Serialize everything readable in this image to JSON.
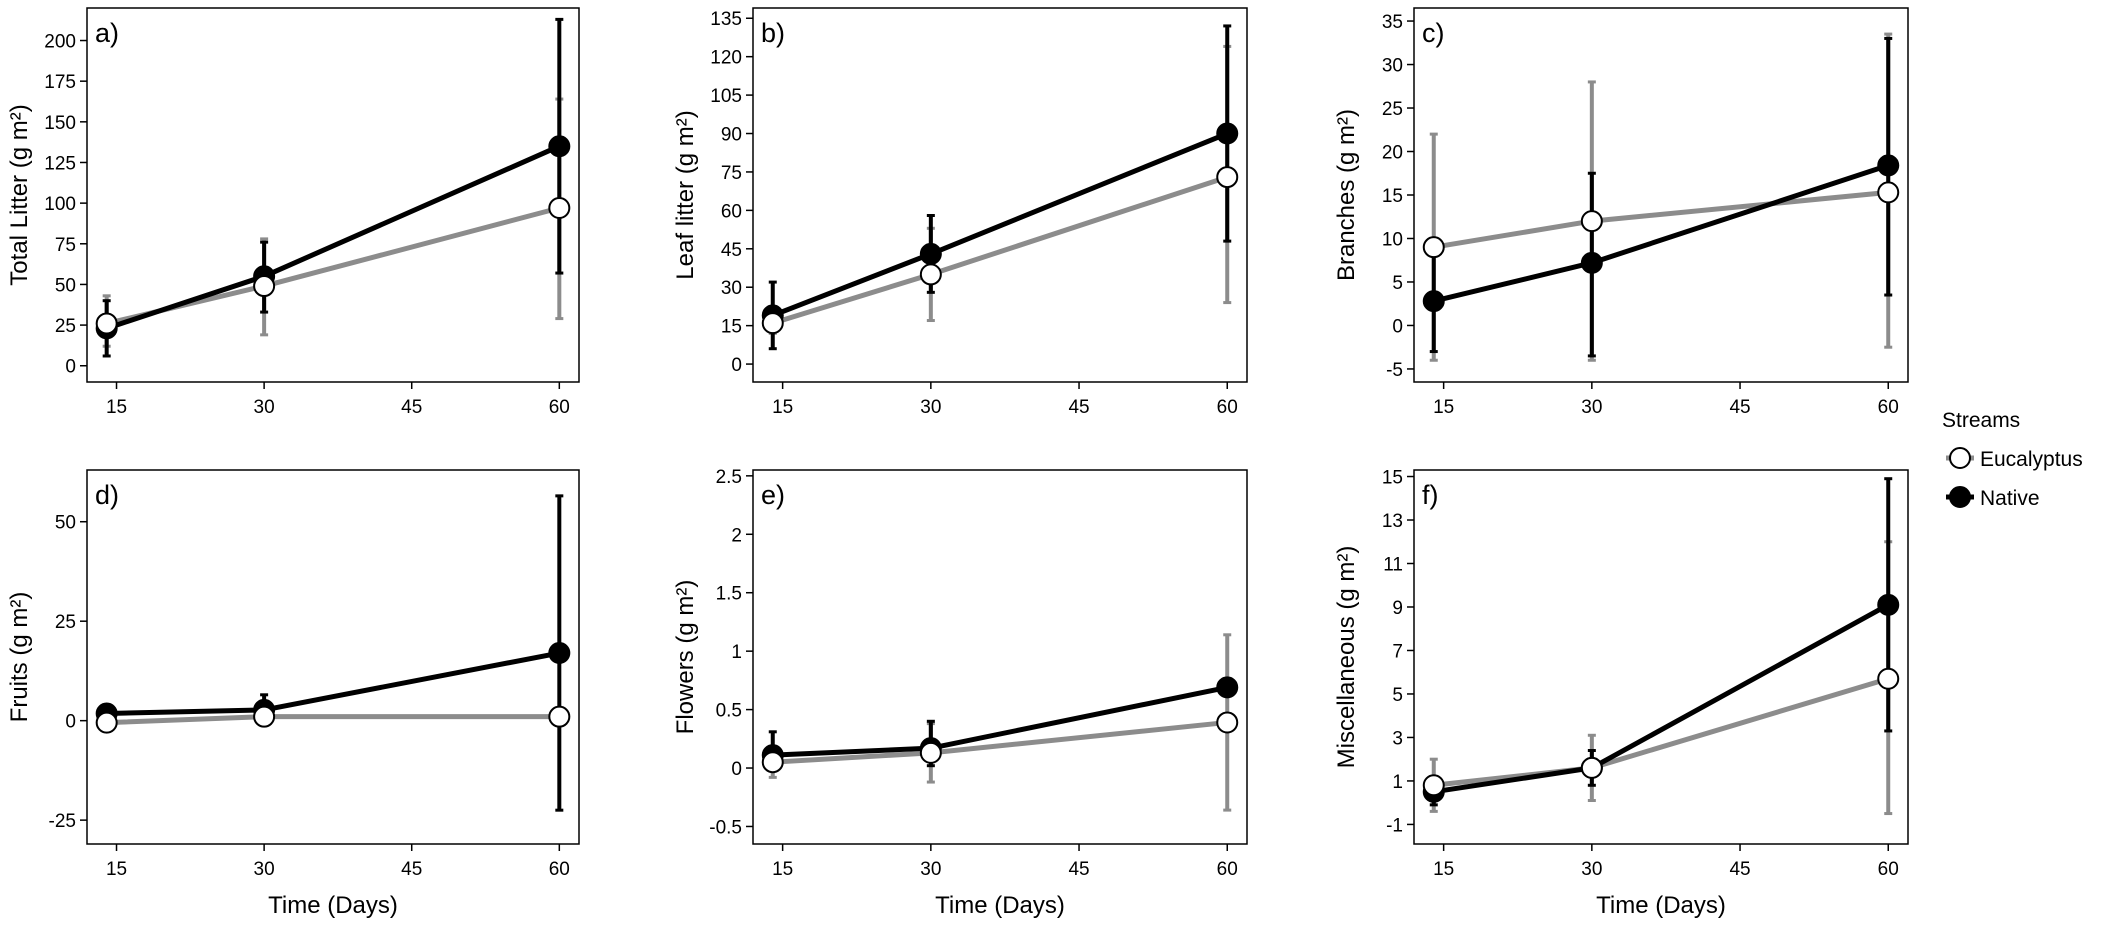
{
  "legend": {
    "title": "Streams",
    "entries": [
      {
        "label": "Eucalyptus",
        "color": "#8c8c8c",
        "marker": "open-circle"
      },
      {
        "label": "Native",
        "color": "#000000",
        "marker": "filled-circle"
      }
    ]
  },
  "colors": {
    "eucalyptus": "#8c8c8c",
    "native": "#000000",
    "frame": "#000000"
  },
  "chart_data": [
    {
      "type": "line",
      "panel": "a)",
      "ylabel": "Total Litter (g m²)",
      "xlabel": "",
      "x": [
        14,
        30,
        60
      ],
      "xticks": [
        15,
        30,
        45,
        60
      ],
      "xlim": [
        12,
        62
      ],
      "yticks": [
        0,
        25,
        50,
        75,
        100,
        125,
        150,
        175,
        200
      ],
      "ylim": [
        -10,
        220
      ],
      "series": [
        {
          "name": "Eucalyptus",
          "values": [
            26,
            49,
            97
          ],
          "err_low": [
            12,
            19,
            29
          ],
          "err_high": [
            43,
            78,
            164
          ]
        },
        {
          "name": "Native",
          "values": [
            23,
            55,
            135
          ],
          "err_low": [
            6,
            33,
            57
          ],
          "err_high": [
            40,
            76,
            213
          ]
        }
      ]
    },
    {
      "type": "line",
      "panel": "b)",
      "ylabel": "Leaf litter (g m²)",
      "xlabel": "",
      "x": [
        14,
        30,
        60
      ],
      "xticks": [
        15,
        30,
        45,
        60
      ],
      "xlim": [
        12,
        62
      ],
      "yticks": [
        0,
        15,
        30,
        45,
        60,
        75,
        90,
        105,
        120,
        135
      ],
      "ylim": [
        -7,
        139
      ],
      "series": [
        {
          "name": "Eucalyptus",
          "values": [
            16,
            35,
            73
          ],
          "err_low": [
            12,
            17,
            24
          ],
          "err_high": [
            22,
            53,
            124
          ]
        },
        {
          "name": "Native",
          "values": [
            19,
            43,
            90
          ],
          "err_low": [
            6,
            28,
            48
          ],
          "err_high": [
            32,
            58,
            132
          ]
        }
      ]
    },
    {
      "type": "line",
      "panel": "c)",
      "ylabel": "Branches (g m²)",
      "xlabel": "",
      "x": [
        14,
        30,
        60
      ],
      "xticks": [
        15,
        30,
        45,
        60
      ],
      "xlim": [
        12,
        62
      ],
      "yticks": [
        -5,
        0,
        5,
        10,
        15,
        20,
        25,
        30,
        35
      ],
      "ylim": [
        -6.5,
        36.5
      ],
      "series": [
        {
          "name": "Eucalyptus",
          "values": [
            9,
            12,
            15.3
          ],
          "err_low": [
            -4,
            -4,
            -2.5
          ],
          "err_high": [
            22,
            28,
            33.5
          ]
        },
        {
          "name": "Native",
          "values": [
            2.8,
            7.2,
            18.4
          ],
          "err_low": [
            -3,
            -3.5,
            3.5
          ],
          "err_high": [
            8.5,
            17.5,
            33
          ]
        }
      ]
    },
    {
      "type": "line",
      "panel": "d)",
      "ylabel": "Fruits (g m²)",
      "xlabel": "Time (Days)",
      "x": [
        14,
        30,
        60
      ],
      "xticks": [
        15,
        30,
        45,
        60
      ],
      "xlim": [
        12,
        62
      ],
      "yticks": [
        -25,
        0,
        25,
        50
      ],
      "ylim": [
        -31,
        63
      ],
      "series": [
        {
          "name": "Eucalyptus",
          "values": [
            -0.5,
            1,
            1
          ],
          "err_low": [
            -1.5,
            -0.5,
            0
          ],
          "err_high": [
            0.5,
            2.5,
            2
          ]
        },
        {
          "name": "Native",
          "values": [
            1.8,
            2.7,
            17
          ],
          "err_low": [
            0.5,
            -0.5,
            -22.5
          ],
          "err_high": [
            3,
            6.5,
            56.5
          ]
        }
      ]
    },
    {
      "type": "line",
      "panel": "e)",
      "ylabel": "Flowers (g m²)",
      "xlabel": "Time (Days)",
      "x": [
        14,
        30,
        60
      ],
      "xticks": [
        15,
        30,
        45,
        60
      ],
      "xlim": [
        12,
        62
      ],
      "yticks": [
        -0.5,
        0,
        0.5,
        1.0,
        1.5,
        2.0,
        2.5
      ],
      "ylim": [
        -0.65,
        2.55
      ],
      "series": [
        {
          "name": "Eucalyptus",
          "values": [
            0.05,
            0.13,
            0.39
          ],
          "err_low": [
            -0.08,
            -0.12,
            -0.36
          ],
          "err_high": [
            0.18,
            0.38,
            1.14
          ]
        },
        {
          "name": "Native",
          "values": [
            0.11,
            0.17,
            0.69
          ],
          "err_low": [
            0.0,
            0.02,
            0.67
          ],
          "err_high": [
            0.31,
            0.4,
            0.72
          ]
        }
      ]
    },
    {
      "type": "line",
      "panel": "f)",
      "ylabel": "Miscellaneous (g m²)",
      "xlabel": "Time (Days)",
      "x": [
        14,
        30,
        60
      ],
      "xticks": [
        15,
        30,
        45,
        60
      ],
      "xlim": [
        12,
        62
      ],
      "yticks": [
        -1,
        1,
        3,
        5,
        7,
        9,
        11,
        13,
        15
      ],
      "ylim": [
        -1.9,
        15.3
      ],
      "series": [
        {
          "name": "Eucalyptus",
          "values": [
            0.8,
            1.6,
            5.7
          ],
          "err_low": [
            -0.4,
            0.1,
            -0.5
          ],
          "err_high": [
            2.0,
            3.1,
            12
          ]
        },
        {
          "name": "Native",
          "values": [
            0.5,
            1.6,
            9.1
          ],
          "err_low": [
            -0.1,
            0.8,
            3.3
          ],
          "err_high": [
            1.1,
            2.4,
            14.9
          ]
        }
      ]
    }
  ]
}
